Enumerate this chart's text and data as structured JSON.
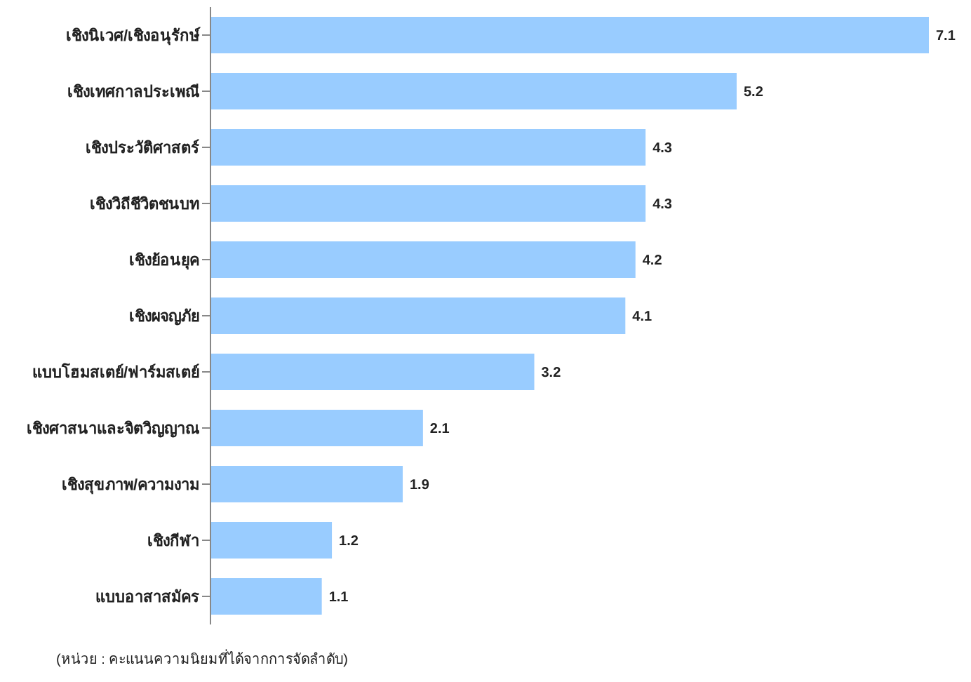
{
  "chart_data": {
    "type": "bar",
    "orientation": "horizontal",
    "categories": [
      "เชิงนิเวศ/เชิงอนุรักษ์",
      "เชิงเทศกาลประเพณี",
      "เชิงประวัติศาสตร์",
      "เชิงวิถีชีวิตชนบท",
      "เชิงย้อนยุค",
      "เชิงผจญภัย",
      "แบบโฮมสเตย์/ฟาร์มสเตย์",
      "เชิงศาสนาและจิตวิญญาณ",
      "เชิงสุขภาพ/ความงาม",
      "เชิงกีฬา",
      "แบบอาสาสมัคร"
    ],
    "values": [
      7.1,
      5.2,
      4.3,
      4.3,
      4.2,
      4.1,
      3.2,
      2.1,
      1.9,
      1.2,
      1.1
    ],
    "color": "#99ccff",
    "data_labels": true,
    "grid": false,
    "legend": false,
    "annotations": [
      "(หน่วย : คะแนนความนิยมที่ได้จากการจัดลำดับ)"
    ]
  }
}
